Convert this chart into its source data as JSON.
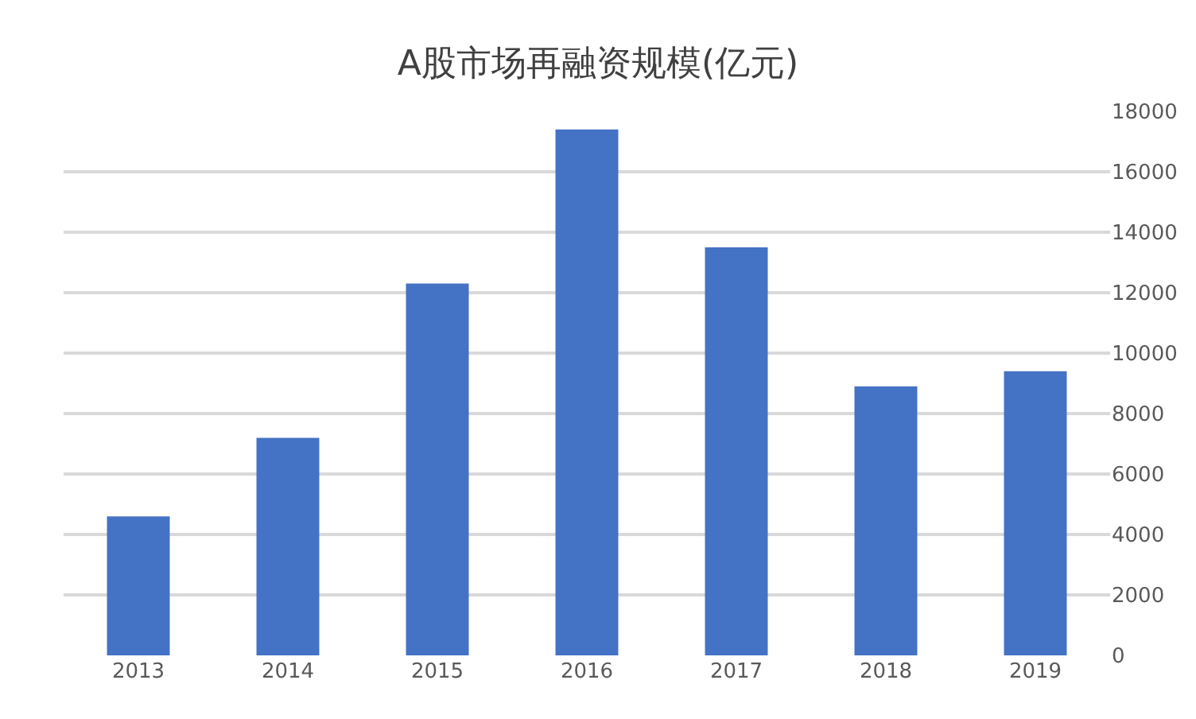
{
  "chart_data": {
    "type": "bar",
    "title": "A股市场再融资规模(亿元)",
    "categories": [
      "2013",
      "2014",
      "2015",
      "2016",
      "2017",
      "2018",
      "2019"
    ],
    "values": [
      4600,
      7200,
      12300,
      17400,
      13500,
      8900,
      9400
    ],
    "color": "#4472c4",
    "ylim": [
      0,
      18000
    ],
    "yticks": [
      0,
      2000,
      4000,
      6000,
      8000,
      10000,
      12000,
      14000,
      16000,
      18000
    ],
    "grid": "y"
  }
}
